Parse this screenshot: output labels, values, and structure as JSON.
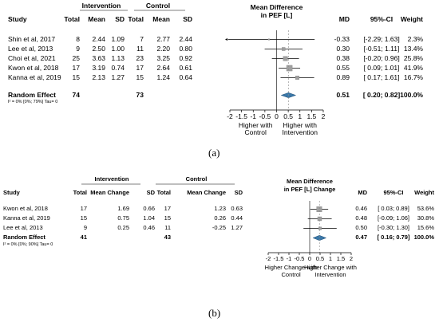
{
  "chart_data": [
    {
      "type": "forest",
      "panel_label": "(a)",
      "group_headers": {
        "intervention": "Intervention",
        "control": "Control"
      },
      "columns": [
        "Study",
        "Total",
        "Mean",
        "SD",
        "Total",
        "Mean",
        "SD",
        "MD",
        "95%-CI",
        "Weight"
      ],
      "plot_title": "Mean Difference in PEF [L]",
      "plot_title_lines": [
        "Mean Difference",
        "in PEF [L]"
      ],
      "studies": [
        {
          "study": "Shin et al, 2017",
          "int_total": "8",
          "int_mean": "2.44",
          "int_sd": "1.09",
          "ctl_total": "7",
          "ctl_mean": "2.77",
          "ctl_sd": "2.44",
          "md": -0.33,
          "md_text": "-0.33",
          "ci_low": -2.29,
          "ci_high": 1.63,
          "ci_text": "[-2.29; 1.63]",
          "weight": 2.3,
          "weight_text": "2.3%"
        },
        {
          "study": "Lee et al, 2013",
          "int_total": "9",
          "int_mean": "2.50",
          "int_sd": "1.00",
          "ctl_total": "11",
          "ctl_mean": "2.20",
          "ctl_sd": "0.80",
          "md": 0.3,
          "md_text": "0.30",
          "ci_low": -0.51,
          "ci_high": 1.11,
          "ci_text": "[-0.51; 1.11]",
          "weight": 13.4,
          "weight_text": "13.4%"
        },
        {
          "study": "Choi et al, 2021",
          "int_total": "25",
          "int_mean": "3.63",
          "int_sd": "1.13",
          "ctl_total": "23",
          "ctl_mean": "3.25",
          "ctl_sd": "0.92",
          "md": 0.38,
          "md_text": "0.38",
          "ci_low": -0.2,
          "ci_high": 0.96,
          "ci_text": "[-0.20; 0.96]",
          "weight": 25.8,
          "weight_text": "25.8%"
        },
        {
          "study": "Kwon et al, 2018",
          "int_total": "17",
          "int_mean": "3.19",
          "int_sd": "0.74",
          "ctl_total": "17",
          "ctl_mean": "2.64",
          "ctl_sd": "0.61",
          "md": 0.55,
          "md_text": "0.55",
          "ci_low": 0.09,
          "ci_high": 1.01,
          "ci_text": "[ 0.09; 1.01]",
          "weight": 41.9,
          "weight_text": "41.9%"
        },
        {
          "study": "Kanna et al, 2019",
          "int_total": "15",
          "int_mean": "2.13",
          "int_sd": "1.27",
          "ctl_total": "15",
          "ctl_mean": "1.24",
          "ctl_sd": "0.64",
          "md": 0.89,
          "md_text": "0.89",
          "ci_low": 0.17,
          "ci_high": 1.61,
          "ci_text": "[ 0.17; 1.61]",
          "weight": 16.7,
          "weight_text": "16.7%"
        }
      ],
      "pooled": {
        "label": "Random Effect",
        "int_total": "74",
        "ctl_total": "73",
        "md": 0.51,
        "md_text": "0.51",
        "ci_low": 0.2,
        "ci_high": 0.82,
        "ci_text": "[ 0.20; 0.82]",
        "weight_text": "100.0%"
      },
      "heterogeneity": "I² = 0% [0%; 79%]    Tau= 0",
      "x_ticks": [
        -2,
        -1.5,
        -1,
        -0.5,
        0,
        0.5,
        1,
        1.5,
        2
      ],
      "x_tick_labels": [
        "-2",
        "-1.5",
        "-1",
        "-0.5",
        "0",
        "0.5",
        "1",
        "1.5",
        "2"
      ],
      "xlim": [
        -2,
        2
      ],
      "favours_left": [
        "Higher with",
        "Control"
      ],
      "favours_right": [
        "Higher with",
        "Intervention"
      ],
      "colors": {
        "pooled_diamond": "#3b78a8",
        "box": "#a0a0a0"
      }
    },
    {
      "type": "forest",
      "panel_label": "(b)",
      "group_headers": {
        "intervention": "Intervention",
        "control": "Control"
      },
      "columns": [
        "Study",
        "Total",
        "Mean Change",
        "SD",
        "Total",
        "Mean Change",
        "SD",
        "MD",
        "95%-CI",
        "Weight"
      ],
      "plot_title": "Mean Difference in PEF [L] Change",
      "plot_title_lines": [
        "Mean Difference",
        "in PEF [L] Change"
      ],
      "studies": [
        {
          "study": "Kwon et al, 2018",
          "int_total": "17",
          "int_mean": "1.69",
          "int_sd": "0.66",
          "ctl_total": "17",
          "ctl_mean": "1.23",
          "ctl_sd": "0.63",
          "md": 0.46,
          "md_text": "0.46",
          "ci_low": 0.03,
          "ci_high": 0.89,
          "ci_text": "[ 0.03; 0.89]",
          "weight": 53.6,
          "weight_text": "53.6%"
        },
        {
          "study": "Kanna et al, 2019",
          "int_total": "15",
          "int_mean": "0.75",
          "int_sd": "1.04",
          "ctl_total": "15",
          "ctl_mean": "0.26",
          "ctl_sd": "0.44",
          "md": 0.48,
          "md_text": "0.48",
          "ci_low": -0.09,
          "ci_high": 1.06,
          "ci_text": "[-0.09; 1.06]",
          "weight": 30.8,
          "weight_text": "30.8%"
        },
        {
          "study": "Lee et al, 2013",
          "int_total": "9",
          "int_mean": "0.25",
          "int_sd": "0.46",
          "ctl_total": "11",
          "ctl_mean": "-0.25",
          "ctl_sd": "1.27",
          "md": 0.5,
          "md_text": "0.50",
          "ci_low": -0.3,
          "ci_high": 1.3,
          "ci_text": "[-0.30; 1.30]",
          "weight": 15.6,
          "weight_text": "15.6%"
        }
      ],
      "pooled": {
        "label": "Random Effect",
        "int_total": "41",
        "ctl_total": "43",
        "md": 0.47,
        "md_text": "0.47",
        "ci_low": 0.16,
        "ci_high": 0.79,
        "ci_text": "[ 0.16; 0.79]",
        "weight_text": "100.0%"
      },
      "heterogeneity": "I² = 0% [0%; 90%]    Tau= 0",
      "x_ticks": [
        -2,
        -1.5,
        -1,
        -0.5,
        0,
        0.5,
        1,
        1.5,
        2
      ],
      "x_tick_labels": [
        "-2",
        "-1.5",
        "-1",
        "-0.5",
        "0",
        "0.5",
        "1",
        "1.5",
        "2"
      ],
      "xlim": [
        -2,
        2
      ],
      "favours_left": [
        "Higher Change with",
        "Control"
      ],
      "favours_right": [
        "Higher Change with",
        "Intervention"
      ],
      "colors": {
        "pooled_diamond": "#3b78a8",
        "box": "#a0a0a0"
      }
    }
  ]
}
